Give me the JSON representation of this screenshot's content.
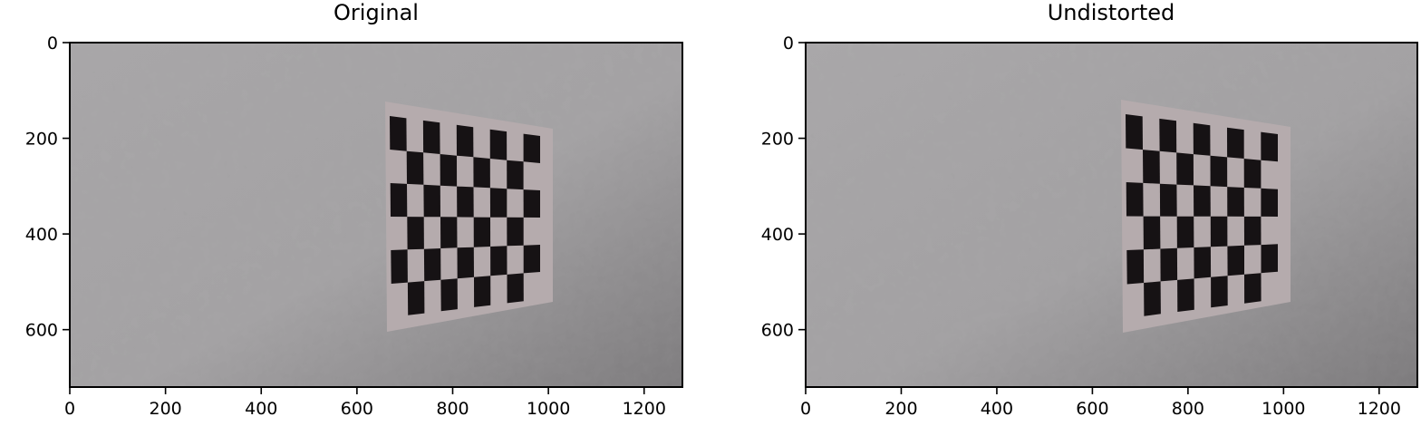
{
  "panels": [
    {
      "title": "Original",
      "x_ticks": [
        "0",
        "200",
        "400",
        "600",
        "800",
        "1000",
        "1200"
      ],
      "y_ticks": [
        "0",
        "200",
        "400",
        "600"
      ],
      "x_tick_values": [
        0,
        200,
        400,
        600,
        800,
        1000,
        1200
      ],
      "y_tick_values": [
        0,
        200,
        400,
        600
      ],
      "image_extent": {
        "width": 1280,
        "height": 720
      }
    },
    {
      "title": "Undistorted",
      "x_ticks": [
        "0",
        "200",
        "400",
        "600",
        "800",
        "1000",
        "1200"
      ],
      "y_ticks": [
        "0",
        "200",
        "400",
        "600"
      ],
      "x_tick_values": [
        0,
        200,
        400,
        600,
        800,
        1000,
        1200
      ],
      "y_tick_values": [
        0,
        200,
        400,
        600
      ],
      "image_extent": {
        "width": 1280,
        "height": 720
      }
    }
  ],
  "colors": {
    "wall_light": "#a9a7a9",
    "wall_dark": "#7e7c7e",
    "paper": "#b6acae",
    "square": "#161214"
  }
}
